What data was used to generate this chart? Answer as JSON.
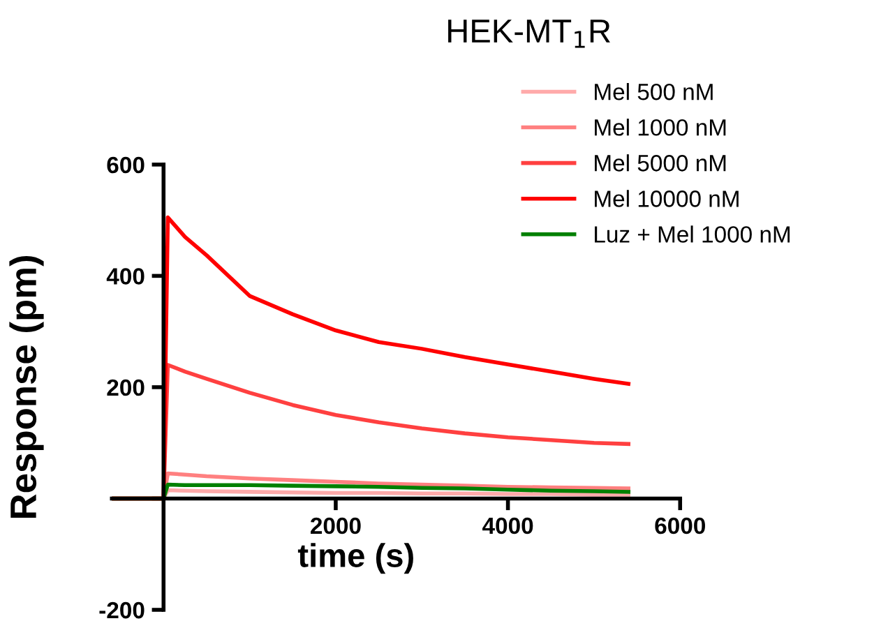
{
  "chart_data": {
    "type": "line",
    "title": "HEK-MT$_{1}$R",
    "xlabel": "time (s)",
    "ylabel": "Response (pm)",
    "x": [
      -600,
      -300,
      0,
      50,
      250,
      500,
      1000,
      1500,
      2000,
      2500,
      3000,
      3500,
      4000,
      4500,
      5000,
      5400
    ],
    "series": [
      {
        "name": "Mel 500 nM",
        "color": "#ffaaaa",
        "values": [
          0,
          0,
          0,
          15,
          14,
          13,
          12,
          11,
          10,
          10,
          9,
          9,
          8,
          8,
          7,
          7
        ]
      },
      {
        "name": "Mel 1000 nM",
        "color": "#ff8080",
        "values": [
          0,
          0,
          0,
          45,
          43,
          40,
          36,
          33,
          30,
          27,
          25,
          23,
          21,
          20,
          19,
          18
        ]
      },
      {
        "name": "Mel 5000 nM",
        "color": "#ff4040",
        "values": [
          0,
          0,
          0,
          240,
          228,
          215,
          190,
          168,
          150,
          137,
          126,
          117,
          110,
          105,
          100,
          98
        ]
      },
      {
        "name": "Mel 10000 nM",
        "color": "#ff0000",
        "values": [
          0,
          0,
          0,
          505,
          470,
          437,
          364,
          331,
          302,
          281,
          269,
          254,
          241,
          228,
          215,
          206
        ]
      },
      {
        "name": "Luz + Mel 1000 nM",
        "color": "#008000",
        "values": [
          0,
          0,
          0,
          25,
          24,
          24,
          24,
          23,
          22,
          21,
          19,
          18,
          16,
          14,
          13,
          12
        ]
      }
    ],
    "xlim": [
      -600,
      6000
    ],
    "ylim": [
      -200,
      600
    ],
    "xticks": [
      2000,
      4000,
      6000
    ],
    "yticks": [
      -200,
      {
        "value": 0,
        "label": null
      },
      200,
      400,
      600
    ],
    "legend": "top right",
    "grid": false,
    "marker": "none",
    "line_style": "solid"
  }
}
